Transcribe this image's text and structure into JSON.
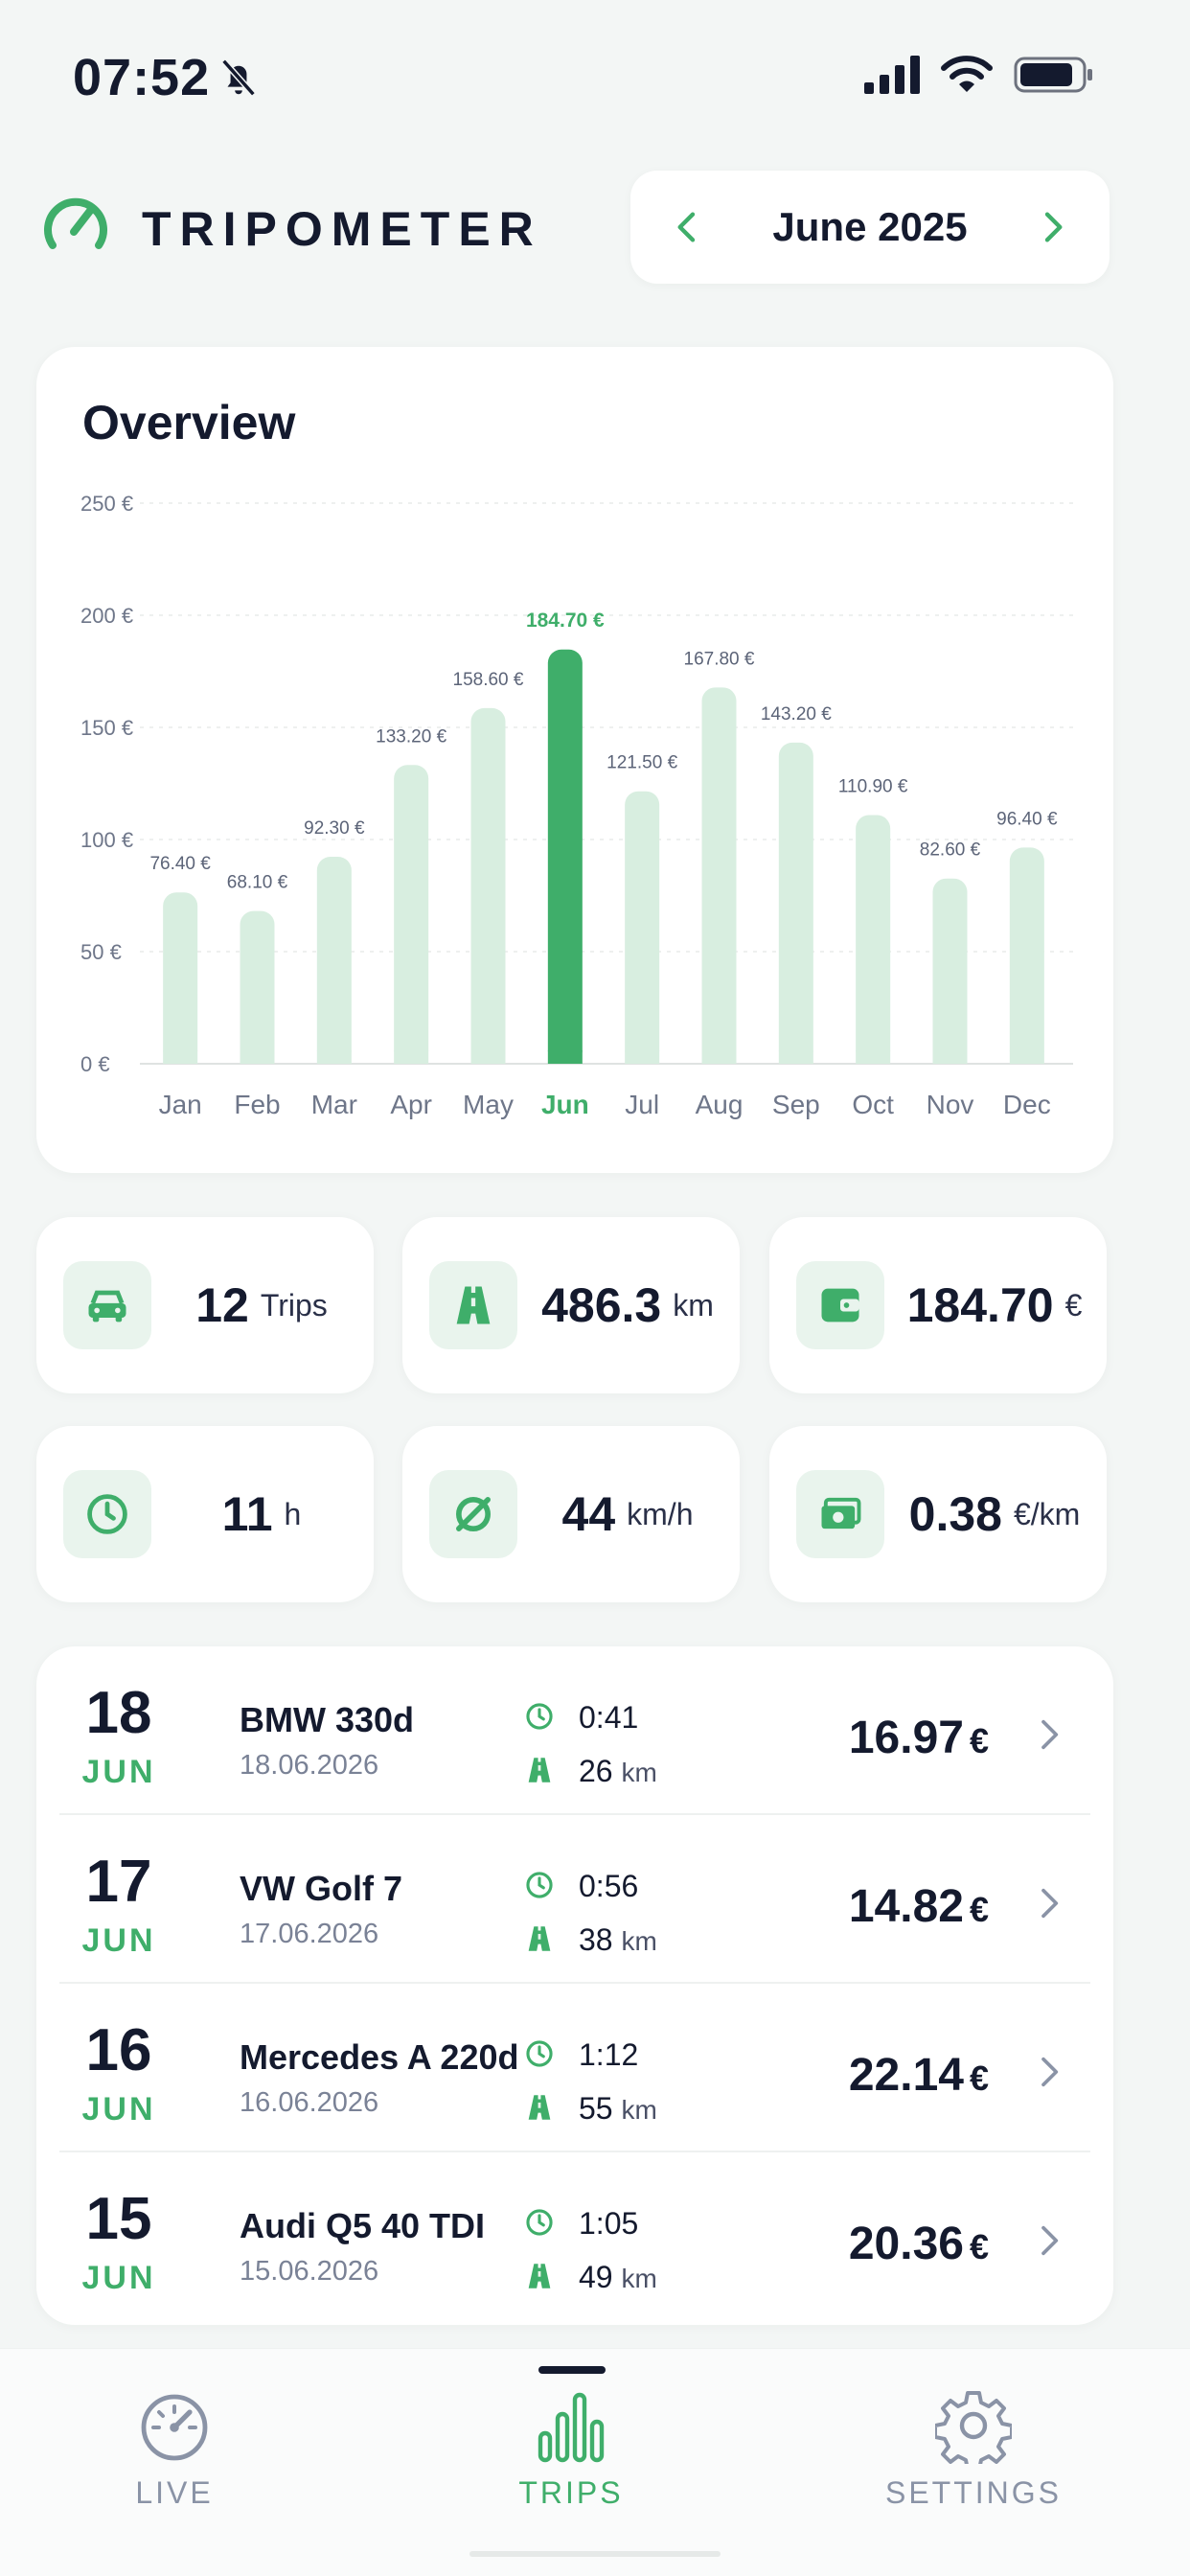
{
  "status_bar": {
    "time": "07:52"
  },
  "header": {
    "app_name": "TRIPOMETER",
    "month_label": "June 2025"
  },
  "overview": {
    "title": "Overview"
  },
  "chart_data": {
    "type": "bar",
    "title": "Overview",
    "categories": [
      "Jan",
      "Feb",
      "Mar",
      "Apr",
      "May",
      "Jun",
      "Jul",
      "Aug",
      "Sep",
      "Oct",
      "Nov",
      "Dec"
    ],
    "values": [
      76.4,
      68.1,
      92.3,
      133.2,
      158.6,
      184.7,
      121.5,
      167.8,
      143.2,
      110.9,
      82.6,
      96.4
    ],
    "value_labels": [
      "76.40 €",
      "68.10 €",
      "92.30 €",
      "133.20 €",
      "158.60 €",
      "184.70 €",
      "121.50 €",
      "167.80 €",
      "143.20 €",
      "110.90 €",
      "82.60 €",
      "96.40 €"
    ],
    "y_ticks": [
      "0 €",
      "50 €",
      "100 €",
      "150 €",
      "200 €",
      "250 €"
    ],
    "ylim": [
      0,
      250
    ],
    "highlight_index": 5,
    "grid": true,
    "colors": {
      "bar": "#d8eee0",
      "highlight": "#3fae6a"
    }
  },
  "stats": [
    {
      "icon": "car-icon",
      "value": "12",
      "unit": "Trips"
    },
    {
      "icon": "road-icon",
      "value": "486.3",
      "unit": "km"
    },
    {
      "icon": "wallet-icon",
      "value": "184.70",
      "unit": "€"
    },
    {
      "icon": "clock-icon",
      "value": "11",
      "unit": "h"
    },
    {
      "icon": "average-icon",
      "value": "44",
      "unit": "km/h"
    },
    {
      "icon": "money-icon",
      "value": "0.38",
      "unit": "€/km"
    }
  ],
  "trips": [
    {
      "day": "18",
      "month": "JUN",
      "car": "BMW 330d",
      "date": "18.06.2026",
      "duration": "0:41",
      "distance": "26",
      "distance_unit": "km",
      "cost": "16.97",
      "currency": "€"
    },
    {
      "day": "17",
      "month": "JUN",
      "car": "VW Golf 7",
      "date": "17.06.2026",
      "duration": "0:56",
      "distance": "38",
      "distance_unit": "km",
      "cost": "14.82",
      "currency": "€"
    },
    {
      "day": "16",
      "month": "JUN",
      "car": "Mercedes A 220d",
      "date": "16.06.2026",
      "duration": "1:12",
      "distance": "55",
      "distance_unit": "km",
      "cost": "22.14",
      "currency": "€"
    },
    {
      "day": "15",
      "month": "JUN",
      "car": "Audi Q5 40 TDI",
      "date": "15.06.2026",
      "duration": "1:05",
      "distance": "49",
      "distance_unit": "km",
      "cost": "20.36",
      "currency": "€"
    }
  ],
  "tabs": [
    {
      "label": "LIVE",
      "icon": "speedometer-icon"
    },
    {
      "label": "TRIPS",
      "icon": "bar-chart-icon",
      "active": true
    },
    {
      "label": "SETTINGS",
      "icon": "gear-icon"
    }
  ],
  "colors": {
    "accent": "#3fae6a",
    "text": "#141a2e",
    "background": "#f3f6f5"
  }
}
